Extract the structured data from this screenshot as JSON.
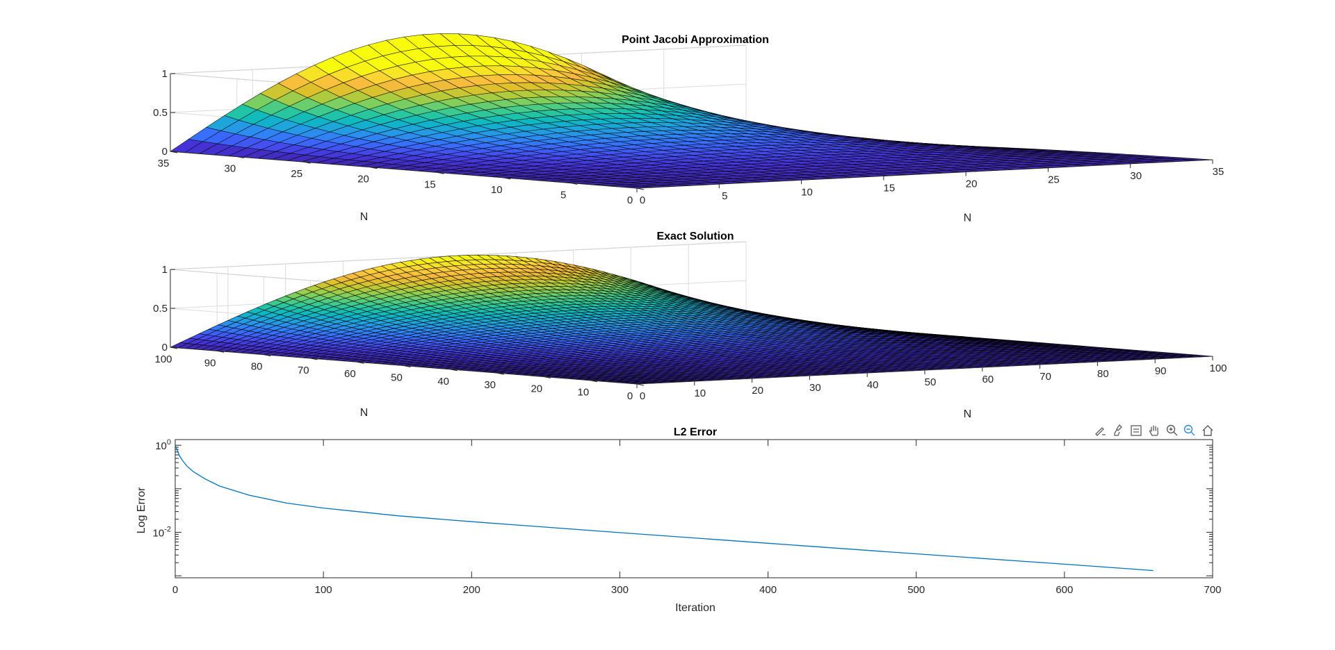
{
  "figure": {
    "background": "#ffffff",
    "grid_color": "#dcdcdc",
    "axis_color": "#262626"
  },
  "colormap": {
    "name": "parula",
    "low": "#3d26a8",
    "high": "#f9fb0e"
  },
  "chart_data": [
    {
      "type": "surface",
      "title": "Point Jacobi Approximation",
      "xlabel": "N",
      "ylabel": "N",
      "zlabel": "",
      "grid_n": 32,
      "grid_lines": 32,
      "xlim": [
        0,
        35
      ],
      "ylim": [
        0,
        35
      ],
      "zlim": [
        0,
        1
      ],
      "xticks": [
        0,
        5,
        10,
        15,
        20,
        25,
        30,
        35
      ],
      "yticks": [
        0,
        5,
        10,
        15,
        20,
        25,
        30,
        35
      ],
      "zticks": [
        0,
        0.5,
        1
      ],
      "zticklabels": [
        "0",
        "0.5",
        "1"
      ],
      "function": "z = sin(pi*x/N) * sinh(pi*y/N) / sinh(pi)",
      "z_max": 1,
      "grid": true
    },
    {
      "type": "surface",
      "title": "Exact Solution",
      "xlabel": "N",
      "ylabel": "N",
      "zlabel": "",
      "grid_n": 100,
      "grid_lines": 60,
      "xlim": [
        0,
        100
      ],
      "ylim": [
        0,
        100
      ],
      "zlim": [
        0,
        1
      ],
      "xticks": [
        0,
        10,
        20,
        30,
        40,
        50,
        60,
        70,
        80,
        90,
        100
      ],
      "yticks": [
        0,
        10,
        20,
        30,
        40,
        50,
        60,
        70,
        80,
        90,
        100
      ],
      "zticks": [
        0,
        0.5,
        1
      ],
      "zticklabels": [
        "0",
        "0.5",
        "1"
      ],
      "function": "z = sin(pi*x/N) * sinh(pi*y/N) / sinh(pi)",
      "z_max": 1,
      "grid": true
    },
    {
      "type": "line",
      "title": "L2 Error",
      "xlabel": "Iteration",
      "ylabel": "Log Error",
      "xlim": [
        0,
        700
      ],
      "ylim": [
        0.0009,
        1.35
      ],
      "y_scale": "log",
      "xticks": [
        0,
        100,
        200,
        300,
        400,
        500,
        600,
        700
      ],
      "yticks": [
        1,
        0.01
      ],
      "ytick_bases": [
        "10",
        "10"
      ],
      "ytick_exponents": [
        "0",
        "-2"
      ],
      "grid": false,
      "series": [
        {
          "color": "#0072bd",
          "x": [
            0,
            1,
            2,
            3,
            5,
            8,
            12,
            20,
            30,
            50,
            75,
            100,
            150,
            200,
            300,
            400,
            500,
            600,
            660
          ],
          "y": [
            1.0,
            0.82,
            0.68,
            0.56,
            0.44,
            0.33,
            0.25,
            0.17,
            0.115,
            0.071,
            0.047,
            0.036,
            0.024,
            0.0175,
            0.0098,
            0.0056,
            0.0032,
            0.00185,
            0.00132
          ]
        }
      ]
    }
  ],
  "toolbar": {
    "buttons": [
      {
        "name": "edit-plot-icon",
        "label": "Edit Plot"
      },
      {
        "name": "brush-icon",
        "label": "Brush"
      },
      {
        "name": "data-tips-icon",
        "label": "Data Tips"
      },
      {
        "name": "pan-icon",
        "label": "Pan"
      },
      {
        "name": "zoom-in-icon",
        "label": "Zoom In"
      },
      {
        "name": "zoom-out-icon",
        "label": "Zoom Out"
      },
      {
        "name": "home-icon",
        "label": "Restore View"
      }
    ],
    "icon_color": "#5a5a5a",
    "active_color": "#2b8ad8"
  }
}
